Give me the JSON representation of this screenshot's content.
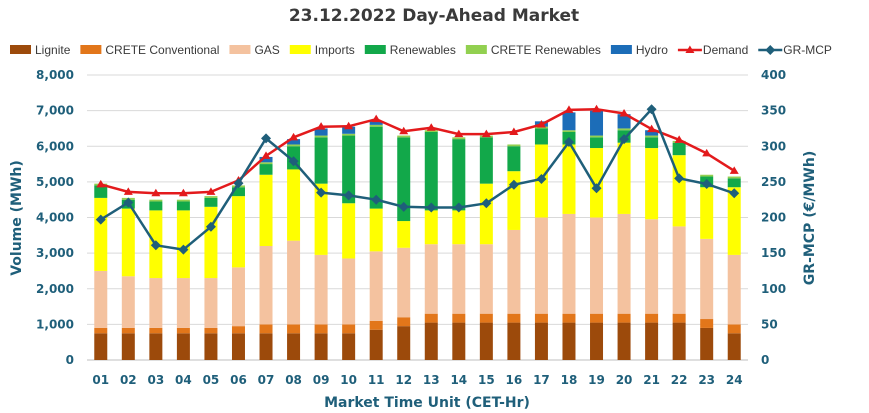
{
  "chart_data": {
    "type": "bar",
    "stacked": true,
    "title": "23.12.2022  Day-Ahead Market",
    "xlabel": "Market Time Unit (CET-Hr)",
    "ylabel": "Volume (MWh)",
    "y2label": "GR-MCP (€/MWh)",
    "ylim": [
      0,
      8000
    ],
    "y2lim": [
      0,
      400
    ],
    "yticks": [
      "0",
      "1,000",
      "2,000",
      "3,000",
      "4,000",
      "5,000",
      "6,000",
      "7,000",
      "8,000"
    ],
    "y2ticks": [
      "0",
      "50",
      "100",
      "150",
      "200",
      "250",
      "300",
      "350",
      "400"
    ],
    "grid": true,
    "legend_position": "top",
    "categories": [
      "01",
      "02",
      "03",
      "04",
      "05",
      "06",
      "07",
      "08",
      "09",
      "10",
      "11",
      "12",
      "13",
      "14",
      "15",
      "16",
      "17",
      "18",
      "19",
      "20",
      "21",
      "22",
      "23",
      "24"
    ],
    "series": [
      {
        "name": "Lignite",
        "kind": "bar",
        "color": "#9c4a0b",
        "values": [
          750,
          750,
          750,
          750,
          750,
          750,
          750,
          750,
          750,
          750,
          850,
          950,
          1050,
          1050,
          1050,
          1050,
          1050,
          1050,
          1050,
          1050,
          1050,
          1050,
          900,
          750
        ]
      },
      {
        "name": "CRETE Conventional",
        "kind": "bar",
        "color": "#e2761a",
        "values": [
          150,
          150,
          150,
          150,
          150,
          200,
          250,
          250,
          250,
          250,
          250,
          250,
          250,
          250,
          250,
          250,
          250,
          250,
          250,
          250,
          250,
          250,
          250,
          250
        ]
      },
      {
        "name": "GAS",
        "kind": "bar",
        "color": "#f4c29f",
        "values": [
          1600,
          1450,
          1400,
          1400,
          1400,
          1650,
          2200,
          2350,
          1950,
          1850,
          1950,
          1950,
          1950,
          1950,
          1950,
          2350,
          2700,
          2800,
          2700,
          2800,
          2650,
          2450,
          2250,
          1950
        ]
      },
      {
        "name": "Imports",
        "kind": "bar",
        "color": "#ffff00",
        "values": [
          2050,
          1900,
          1900,
          1900,
          2000,
          2000,
          2000,
          2000,
          2000,
          1550,
          1200,
          750,
          950,
          950,
          1700,
          1650,
          2050,
          1950,
          1950,
          2000,
          2000,
          2000,
          1450,
          1900
        ]
      },
      {
        "name": "Renewables",
        "kind": "bar",
        "color": "#12a84a",
        "values": [
          350,
          250,
          250,
          250,
          250,
          250,
          300,
          650,
          1300,
          1900,
          2300,
          2350,
          2200,
          2000,
          1300,
          700,
          450,
          350,
          300,
          350,
          300,
          350,
          300,
          250
        ]
      },
      {
        "name": "CRETE Renewables",
        "kind": "bar",
        "color": "#92d050",
        "values": [
          50,
          50,
          50,
          50,
          50,
          50,
          50,
          50,
          50,
          50,
          50,
          50,
          50,
          50,
          50,
          50,
          50,
          50,
          50,
          50,
          50,
          50,
          50,
          50
        ]
      },
      {
        "name": "Hydro",
        "kind": "bar",
        "color": "#1c6db8",
        "values": [
          0,
          0,
          0,
          0,
          0,
          0,
          150,
          150,
          200,
          200,
          100,
          0,
          0,
          0,
          0,
          0,
          150,
          500,
          700,
          400,
          150,
          0,
          0,
          0
        ]
      },
      {
        "name": "Demand",
        "kind": "line",
        "color": "#e31a1c",
        "axis": "left",
        "values": [
          4930,
          4720,
          4680,
          4680,
          4720,
          5040,
          5730,
          6250,
          6550,
          6560,
          6760,
          6420,
          6520,
          6340,
          6340,
          6400,
          6610,
          7020,
          7040,
          6920,
          6480,
          6180,
          5800,
          5310
        ]
      },
      {
        "name": "GR-MCP",
        "kind": "line",
        "color": "#1f5f7a",
        "axis": "right",
        "values": [
          197,
          221,
          161,
          155,
          187,
          248,
          311,
          279,
          235,
          231,
          225,
          215,
          214,
          214,
          220,
          246,
          254,
          306,
          241,
          310,
          352,
          255,
          247,
          234
        ]
      }
    ]
  }
}
